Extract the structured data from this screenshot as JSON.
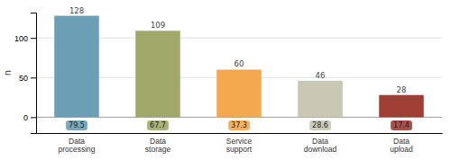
{
  "chart_data": {
    "type": "bar",
    "categories": [
      "Data\nprocessing",
      "Data\nstorage",
      "Service\nsupport",
      "Data\ndownload",
      "Data\nupload"
    ],
    "values": [
      128,
      109,
      60,
      46,
      28
    ],
    "colors": [
      "#6a9fb5",
      "#a0a96a",
      "#f5a94e",
      "#c8c8b4",
      "#9e3e35"
    ],
    "annotations": [
      "79.5",
      "67.7",
      "37.3",
      "28.6",
      "17.4"
    ],
    "ylabel": "n",
    "ylim": [
      -20,
      132
    ],
    "yticks": [
      0,
      50,
      100
    ],
    "grid": true,
    "data_labels": true
  }
}
